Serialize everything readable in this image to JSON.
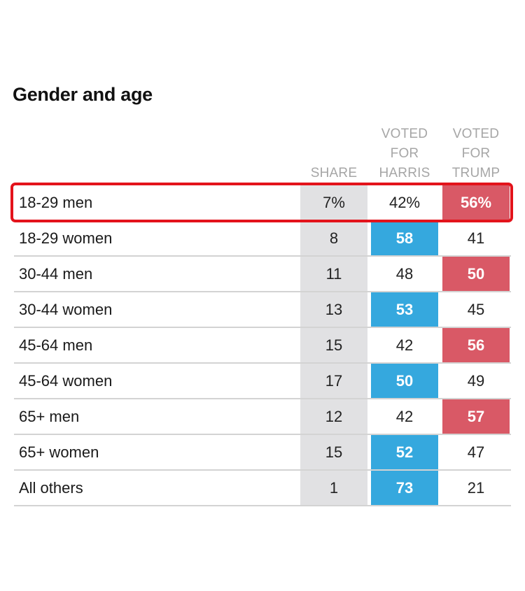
{
  "title": "Gender and age",
  "headers": {
    "share": "SHARE",
    "harris": [
      "VOTED",
      "FOR",
      "HARRIS"
    ],
    "trump": [
      "VOTED",
      "FOR",
      "TRUMP"
    ]
  },
  "colors": {
    "harris_win": "#35a8de",
    "trump_win": "#d95966",
    "share_bg": "#e1e1e3",
    "highlight": "#e3131b"
  },
  "highlighted_row": "18-29 men",
  "chart_data": {
    "type": "table",
    "title": "Gender and age",
    "columns": [
      "SHARE",
      "VOTED FOR HARRIS",
      "VOTED FOR TRUMP"
    ],
    "rows": [
      {
        "group": "18-29 men",
        "share": "7%",
        "harris": "42%",
        "trump": "56%",
        "winner": "trump"
      },
      {
        "group": "18-29 women",
        "share": "8",
        "harris": "58",
        "trump": "41",
        "winner": "harris"
      },
      {
        "group": "30-44 men",
        "share": "11",
        "harris": "48",
        "trump": "50",
        "winner": "trump"
      },
      {
        "group": "30-44 women",
        "share": "13",
        "harris": "53",
        "trump": "45",
        "winner": "harris"
      },
      {
        "group": "45-64 men",
        "share": "15",
        "harris": "42",
        "trump": "56",
        "winner": "trump"
      },
      {
        "group": "45-64 women",
        "share": "17",
        "harris": "50",
        "trump": "49",
        "winner": "harris"
      },
      {
        "group": "65+ men",
        "share": "12",
        "harris": "42",
        "trump": "57",
        "winner": "trump"
      },
      {
        "group": "65+ women",
        "share": "15",
        "harris": "52",
        "trump": "47",
        "winner": "harris"
      },
      {
        "group": "All others",
        "share": "1",
        "harris": "73",
        "trump": "21",
        "winner": "harris"
      }
    ]
  }
}
